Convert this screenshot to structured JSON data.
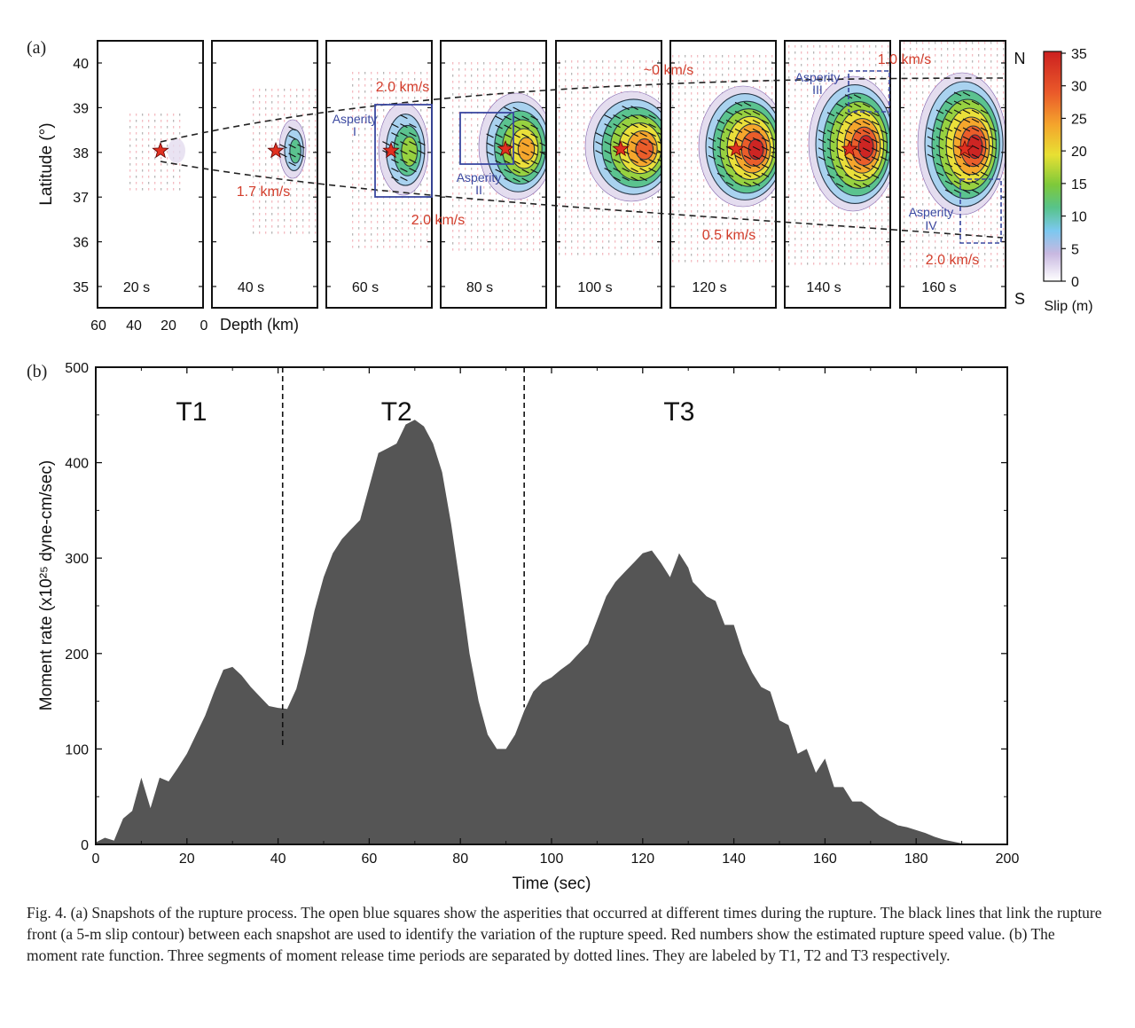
{
  "panel_a": {
    "label": "(a)",
    "y_axis_label": "Latitude (°)",
    "y_ticks": [
      "40",
      "39",
      "38",
      "37",
      "36",
      "35"
    ],
    "depth_ticks": [
      "60",
      "40",
      "20",
      "0"
    ],
    "depth_label": "Depth (km)",
    "north_label": "N",
    "south_label": "S",
    "snapshots": [
      "20 s",
      "40 s",
      "60 s",
      "80 s",
      "100 s",
      "120 s",
      "140 s",
      "160 s"
    ],
    "speed_labels": [
      "2.0 km/s",
      "1.7 km/s",
      "2.0 km/s",
      "~0 km/s",
      "1.0 km/s",
      "0.5 km/s",
      "2.0 km/s"
    ],
    "asperity_labels": [
      {
        "line1": "Asperity",
        "line2": "I"
      },
      {
        "line1": "Asperity",
        "line2": "II"
      },
      {
        "line1": "Asperity",
        "line2": "III"
      },
      {
        "line1": "Asperity",
        "line2": "IV"
      }
    ],
    "colorbar": {
      "ticks": [
        "35",
        "30",
        "25",
        "20",
        "15",
        "10",
        "5",
        "0"
      ],
      "label": "Slip (m)"
    },
    "colors": {
      "speed_text": "#d23c2a",
      "asperity": "#3a48a0",
      "star": "#e03020"
    }
  },
  "chart_data": {
    "type": "area",
    "panel_label": "(b)",
    "title": "",
    "xlabel": "Time (sec)",
    "ylabel": "Moment rate (x10²⁵ dyne-cm/sec)",
    "xlim": [
      0,
      200
    ],
    "ylim": [
      0,
      500
    ],
    "x_ticks": [
      0,
      20,
      40,
      60,
      80,
      100,
      120,
      140,
      160,
      180,
      200
    ],
    "y_ticks": [
      0,
      100,
      200,
      300,
      400,
      500
    ],
    "segment_boundaries": [
      41,
      94
    ],
    "segment_labels": [
      {
        "text": "T1",
        "x": 21
      },
      {
        "text": "T2",
        "x": 66
      },
      {
        "text": "T3",
        "x": 128
      }
    ],
    "fill_color": "#555555",
    "x": [
      0,
      2,
      4,
      6,
      8,
      10,
      12,
      14,
      16,
      18,
      20,
      22,
      24,
      26,
      28,
      30,
      32,
      34,
      36,
      38,
      40,
      42,
      44,
      46,
      48,
      50,
      52,
      54,
      56,
      58,
      60,
      62,
      64,
      66,
      68,
      70,
      72,
      74,
      76,
      78,
      80,
      82,
      84,
      86,
      88,
      90,
      92,
      94,
      96,
      98,
      100,
      102,
      104,
      106,
      108,
      110,
      112,
      114,
      116,
      118,
      120,
      122,
      124,
      126,
      128,
      130,
      131,
      132,
      134,
      136,
      138,
      140,
      142,
      144,
      146,
      148,
      150,
      152,
      154,
      156,
      158,
      160,
      162,
      164,
      166,
      168,
      170,
      172,
      174,
      176,
      178,
      180,
      182,
      184,
      186,
      188,
      190,
      192,
      194,
      196,
      198,
      200
    ],
    "values": [
      2,
      7,
      4,
      27,
      35,
      70,
      38,
      70,
      66,
      80,
      95,
      115,
      135,
      160,
      183,
      186,
      177,
      165,
      155,
      145,
      143,
      142,
      163,
      200,
      245,
      280,
      305,
      320,
      330,
      340,
      375,
      410,
      415,
      420,
      440,
      445,
      438,
      420,
      390,
      335,
      270,
      200,
      150,
      115,
      100,
      100,
      115,
      140,
      160,
      170,
      175,
      183,
      190,
      200,
      210,
      235,
      260,
      275,
      285,
      295,
      305,
      308,
      295,
      280,
      305,
      290,
      275,
      270,
      260,
      255,
      230,
      230,
      200,
      180,
      165,
      160,
      130,
      125,
      95,
      100,
      75,
      90,
      60,
      60,
      45,
      45,
      38,
      30,
      25,
      20,
      18,
      15,
      12,
      8,
      5,
      3,
      1,
      0,
      0,
      0,
      0,
      0
    ]
  },
  "caption": "Fig. 4. (a) Snapshots of the rupture process. The open blue squares show the asperities that occurred at different times during the rupture. The black lines that link the rupture front (a 5-m slip contour) between each snapshot are used to identify the variation of the rupture speed. Red numbers show the estimated rupture speed value. (b) The moment rate function. Three segments of moment release time periods are separated by dotted lines. They are labeled by T1, T2 and T3 respectively."
}
